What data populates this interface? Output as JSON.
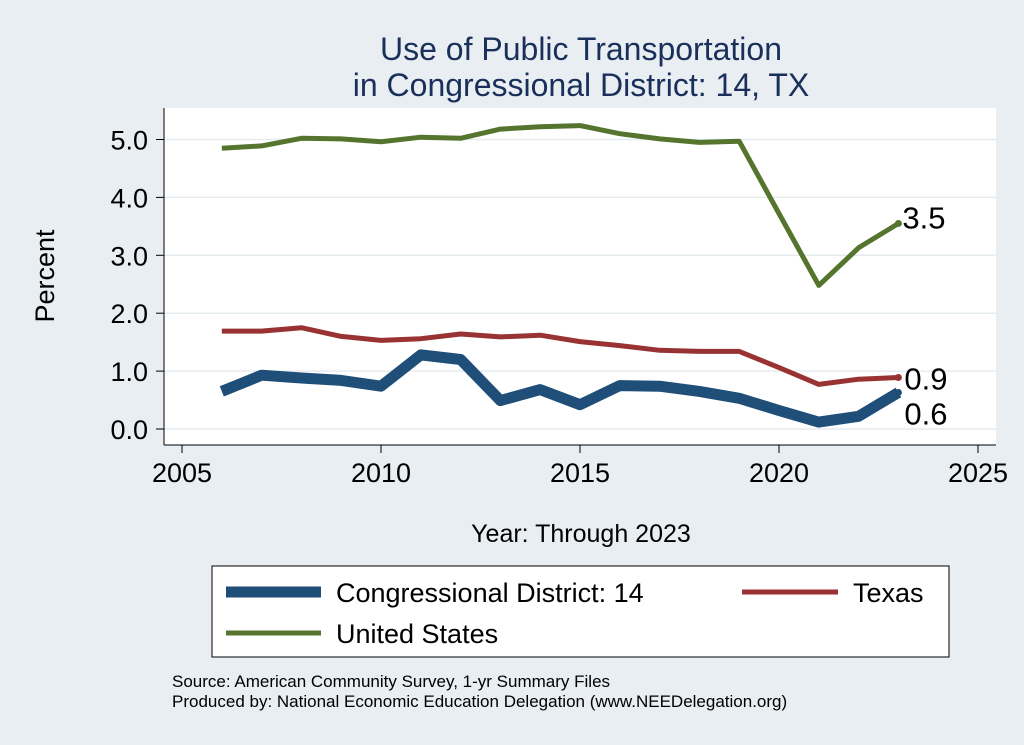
{
  "chart_data": {
    "type": "line",
    "title": [
      "Use of Public Transportation",
      "in Congressional District: 14, TX"
    ],
    "xlabel": "Year: Through 2023",
    "ylabel": "Percent",
    "xlim": [
      2005,
      2025
    ],
    "ylim": [
      0.0,
      5.5
    ],
    "x_ticks": [
      2005,
      2010,
      2015,
      2020,
      2025
    ],
    "y_ticks": [
      0.0,
      1.0,
      2.0,
      3.0,
      4.0,
      5.0
    ],
    "y_tick_labels": [
      "0.0",
      "1.0",
      "2.0",
      "3.0",
      "4.0",
      "5.0"
    ],
    "grid": "horizontal",
    "legend_position": "bottom",
    "x": [
      2006,
      2007,
      2008,
      2009,
      2010,
      2011,
      2012,
      2013,
      2014,
      2015,
      2016,
      2017,
      2018,
      2019,
      2020,
      2021,
      2022,
      2023
    ],
    "series": [
      {
        "name": "Congressional District: 14",
        "color": "#1f4e79",
        "values": [
          0.65,
          0.93,
          0.88,
          0.84,
          0.74,
          1.28,
          1.2,
          0.49,
          0.68,
          0.42,
          0.75,
          0.74,
          0.65,
          0.53,
          0.32,
          0.12,
          0.22,
          0.63
        ],
        "end_label": "0.6"
      },
      {
        "name": "Texas",
        "color": "#993333",
        "values": [
          1.69,
          1.69,
          1.75,
          1.6,
          1.53,
          1.56,
          1.64,
          1.59,
          1.62,
          1.51,
          1.44,
          1.36,
          1.34,
          1.34,
          1.06,
          0.77,
          0.86,
          0.89
        ],
        "end_label": "0.9"
      },
      {
        "name": "United States",
        "color": "#55752f",
        "values": [
          4.85,
          4.89,
          5.02,
          5.01,
          4.96,
          5.04,
          5.02,
          5.18,
          5.22,
          5.24,
          5.1,
          5.01,
          4.95,
          4.97,
          3.72,
          2.48,
          3.13,
          3.55
        ],
        "end_label": "3.5"
      }
    ],
    "legend": [
      {
        "label": "Congressional District: 14",
        "color": "#1f4e79"
      },
      {
        "label": "Texas",
        "color": "#993333"
      },
      {
        "label": "United States",
        "color": "#55752f"
      }
    ]
  },
  "source": {
    "line1": "Source: American Community Survey, 1-yr Summary Files",
    "line2": "Produced by: National Economic Education Delegation (www.NEEDelegation.org)"
  }
}
